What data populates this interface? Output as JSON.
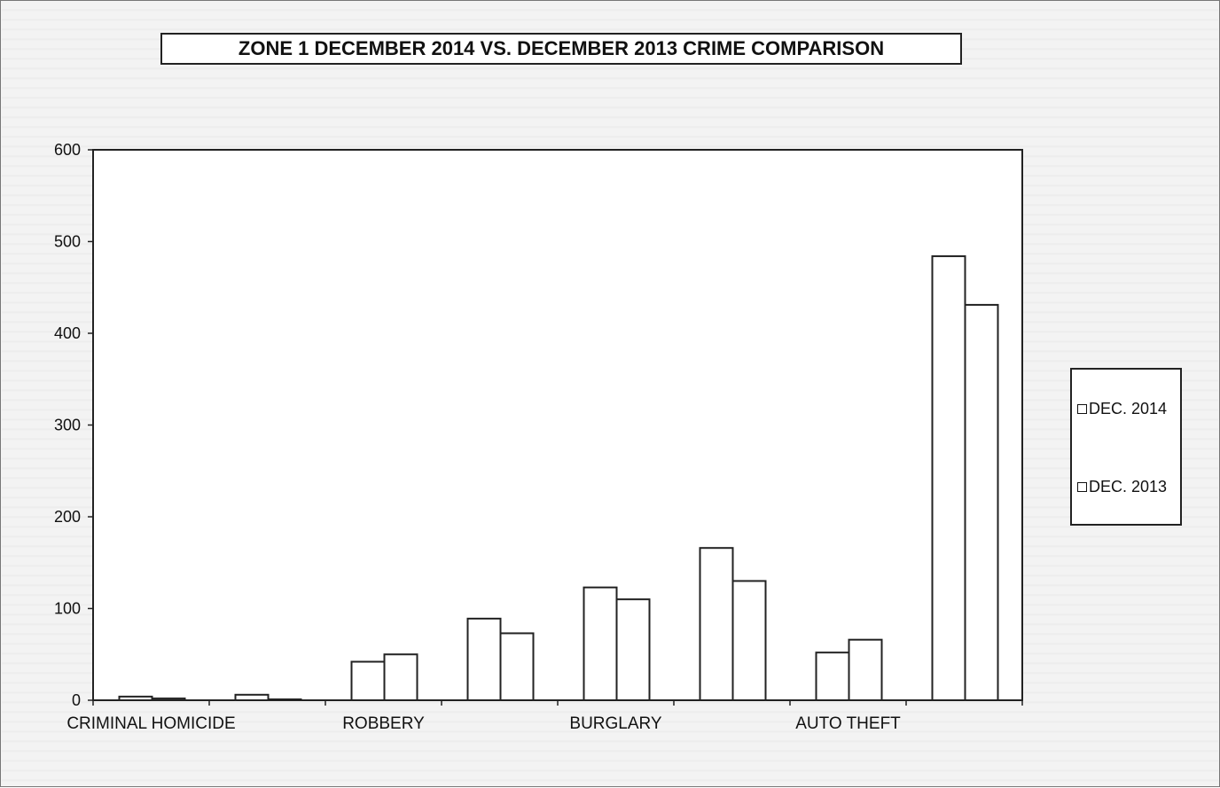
{
  "chart_data": {
    "type": "bar",
    "title": "ZONE 1  DECEMBER 2014 VS. DECEMBER 2013 CRIME COMPARISON",
    "xlabel": "",
    "ylabel": "",
    "ylim": [
      0,
      600
    ],
    "yticks": [
      "0",
      "100",
      "200",
      "300",
      "400",
      "500",
      "600"
    ],
    "grid": false,
    "legend_position": "right",
    "categories": [
      "CRIMINAL HOMICIDE",
      "",
      "ROBBERY",
      "",
      "BURGLARY",
      "",
      "AUTO THEFT",
      ""
    ],
    "series": [
      {
        "name": "DEC. 2014",
        "values": [
          4,
          6,
          42,
          89,
          123,
          166,
          52,
          484
        ],
        "color": "#ffffff"
      },
      {
        "name": "DEC. 2013",
        "values": [
          2,
          1,
          50,
          73,
          110,
          130,
          66,
          431
        ],
        "color": "#ffffff"
      }
    ]
  }
}
